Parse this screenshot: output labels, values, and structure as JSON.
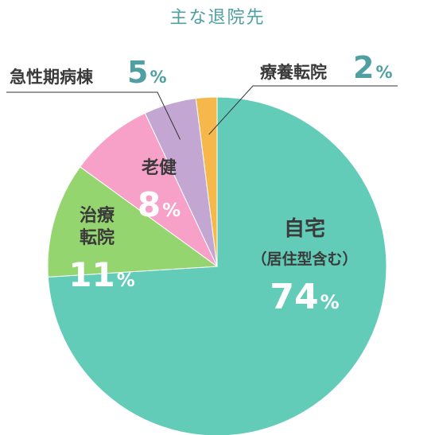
{
  "chart_data": {
    "type": "pie",
    "title": "主な退院先",
    "percent_sign": "%",
    "slices": [
      {
        "label": "自宅",
        "sublabel": "（居住型含む）",
        "value": 74,
        "color": "#62ccb9"
      },
      {
        "label": "治療転院",
        "value": 11,
        "color": "#95d56f"
      },
      {
        "label": "老健",
        "value": 8,
        "color": "#f7a1c9"
      },
      {
        "label": "急性期病棟",
        "value": 5,
        "color": "#c4a6d3"
      },
      {
        "label": "療養転院",
        "value": 2,
        "color": "#f6b84b"
      }
    ]
  }
}
